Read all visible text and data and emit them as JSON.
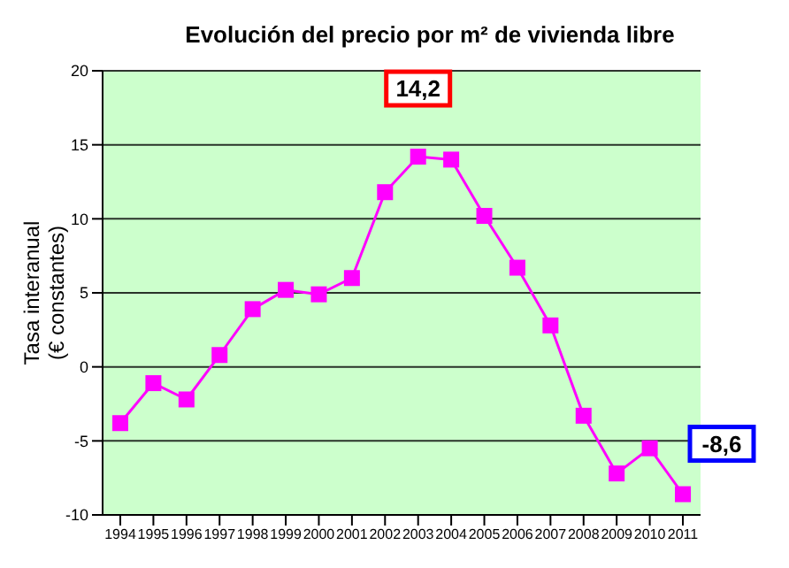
{
  "chart_data": {
    "type": "line",
    "title": "Evolución del precio por m² de vivienda libre",
    "ylabel": "Tasa interanual\n(€ constantes)",
    "categories": [
      "1994",
      "1995",
      "1996",
      "1997",
      "1998",
      "1999",
      "2000",
      "2001",
      "2002",
      "2003",
      "2004",
      "2005",
      "2006",
      "2007",
      "2008",
      "2009",
      "2010",
      "2011"
    ],
    "series": [
      {
        "color": "#ff00ff",
        "values": [
          -3.8,
          -1.1,
          -2.2,
          0.8,
          3.9,
          5.2,
          4.9,
          6.0,
          11.8,
          14.2,
          14.0,
          10.2,
          6.7,
          2.8,
          -3.3,
          -7.2,
          -5.5,
          -8.6
        ]
      }
    ],
    "ylim": [
      -10,
      20
    ],
    "yticks": [
      -10,
      -5,
      0,
      5,
      10,
      15,
      20
    ],
    "grid": "y",
    "marker": "square",
    "legend": false,
    "annotations": [
      {
        "text": "14,2",
        "x": "2003",
        "y": 14.2
      },
      {
        "text": "-8,6",
        "x": "2011",
        "y": -8.6
      }
    ]
  }
}
